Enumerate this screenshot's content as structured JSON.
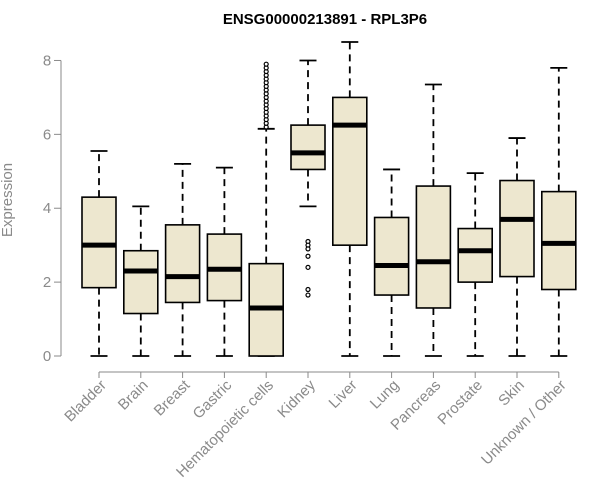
{
  "chart_data": {
    "type": "boxplot",
    "title": "ENSG00000213891 - RPL3P6",
    "xlabel": "",
    "ylabel": "Expression",
    "ylim": [
      0,
      8.5
    ],
    "yticks": [
      0,
      2,
      4,
      6,
      8
    ],
    "grid": false,
    "colors": {
      "box_fill": "#ede7cf",
      "box_stroke": "#000000",
      "axis": "#8a8a8a"
    },
    "categories": [
      "Bladder",
      "Brain",
      "Breast",
      "Gastric",
      "Hematopoietic cells",
      "Kidney",
      "Liver",
      "Lung",
      "Pancreas",
      "Prostate",
      "Skin",
      "Unknown / Other"
    ],
    "boxes": [
      {
        "name": "Bladder",
        "whisker_low": 0,
        "q1": 1.85,
        "median": 3.0,
        "q3": 4.3,
        "whisker_high": 5.55,
        "outliers": []
      },
      {
        "name": "Brain",
        "whisker_low": 0,
        "q1": 1.15,
        "median": 2.3,
        "q3": 2.85,
        "whisker_high": 4.05,
        "outliers": []
      },
      {
        "name": "Breast",
        "whisker_low": 0,
        "q1": 1.45,
        "median": 2.15,
        "q3": 3.55,
        "whisker_high": 5.2,
        "outliers": []
      },
      {
        "name": "Gastric",
        "whisker_low": 0,
        "q1": 1.5,
        "median": 2.35,
        "q3": 3.3,
        "whisker_high": 5.1,
        "outliers": []
      },
      {
        "name": "Hematopoietic cells",
        "whisker_low": 0,
        "q1": 0,
        "median": 1.3,
        "q3": 2.5,
        "whisker_high": 6.15,
        "outliers": [
          6.2,
          6.3,
          6.4,
          6.5,
          6.6,
          6.7,
          6.8,
          6.9,
          7.0,
          7.1,
          7.2,
          7.3,
          7.4,
          7.5,
          7.6,
          7.7,
          7.8,
          7.9
        ]
      },
      {
        "name": "Kidney",
        "whisker_low": 4.05,
        "q1": 5.05,
        "median": 5.5,
        "q3": 6.25,
        "whisker_high": 8.0,
        "outliers": [
          3.1,
          3.0,
          2.9,
          2.7,
          2.4,
          1.8,
          1.65
        ]
      },
      {
        "name": "Liver",
        "whisker_low": 0,
        "q1": 3.0,
        "median": 6.25,
        "q3": 7.0,
        "whisker_high": 8.5,
        "outliers": []
      },
      {
        "name": "Lung",
        "whisker_low": 0,
        "q1": 1.65,
        "median": 2.45,
        "q3": 3.75,
        "whisker_high": 5.05,
        "outliers": []
      },
      {
        "name": "Pancreas",
        "whisker_low": 0,
        "q1": 1.3,
        "median": 2.55,
        "q3": 4.6,
        "whisker_high": 7.35,
        "outliers": []
      },
      {
        "name": "Prostate",
        "whisker_low": 0,
        "q1": 2.0,
        "median": 2.85,
        "q3": 3.45,
        "whisker_high": 4.95,
        "outliers": []
      },
      {
        "name": "Skin",
        "whisker_low": 0,
        "q1": 2.15,
        "median": 3.7,
        "q3": 4.75,
        "whisker_high": 5.9,
        "outliers": []
      },
      {
        "name": "Unknown / Other",
        "whisker_low": 0,
        "q1": 1.8,
        "median": 3.05,
        "q3": 4.45,
        "whisker_high": 7.8,
        "outliers": []
      }
    ]
  }
}
